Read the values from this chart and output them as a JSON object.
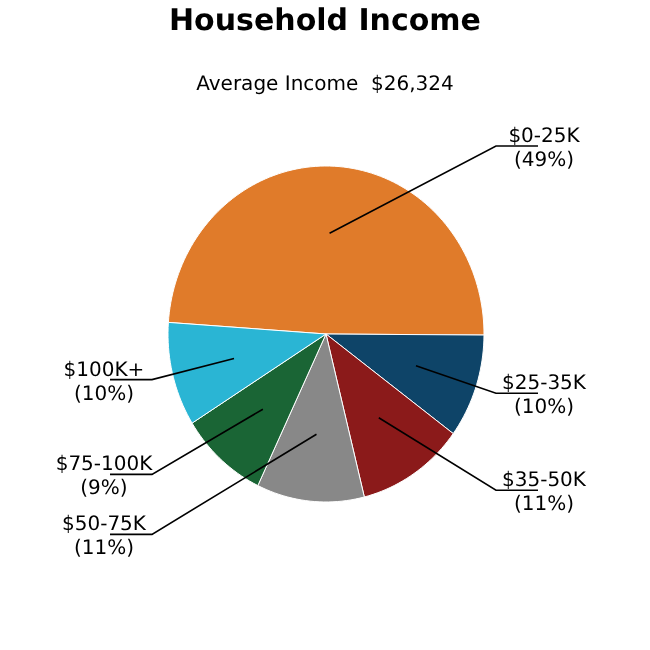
{
  "chart_data": {
    "type": "pie",
    "title": "Household Income",
    "subtitle": "Average Income  $26,324",
    "categories": [
      "$0-25K",
      "$25-35K",
      "$35-50K",
      "$50-75K",
      "$75-100K",
      "$100K+"
    ],
    "values": [
      49,
      10,
      11,
      11,
      9,
      10
    ],
    "value_labels": [
      "(49%)",
      "(10%)",
      "(11%)",
      "(11%)",
      "(9%)",
      "(10%)"
    ],
    "colors": [
      "#e07b2a",
      "#0e4468",
      "#8b1a1a",
      "#888888",
      "#1a6535",
      "#2ab5d4"
    ]
  }
}
